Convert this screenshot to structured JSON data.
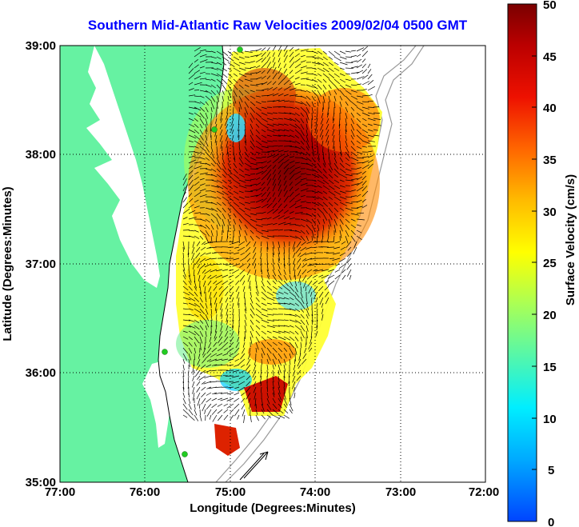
{
  "title": "Southern Mid-Atlantic Raw Velocities 2009/02/04 0500 GMT",
  "x_axis": {
    "label": "Longitude (Degrees:Minutes)",
    "ticks": [
      "77:00",
      "76:00",
      "75:00",
      "74:00",
      "73:00",
      "72:00"
    ]
  },
  "y_axis": {
    "label": "Latitude (Degrees:Minutes)",
    "ticks": [
      "39:00",
      "38:00",
      "37:00",
      "36:00",
      "35:00"
    ]
  },
  "colorbar": {
    "label": "Surface Velocity (cm/s)",
    "ticks": [
      "50",
      "45",
      "40",
      "35",
      "30",
      "25",
      "20",
      "15",
      "10",
      "5",
      "0"
    ]
  },
  "colors": {
    "land": "#66f2a2",
    "water": "#ffffff",
    "title": "#0000ff",
    "station": "#22cc22"
  }
}
